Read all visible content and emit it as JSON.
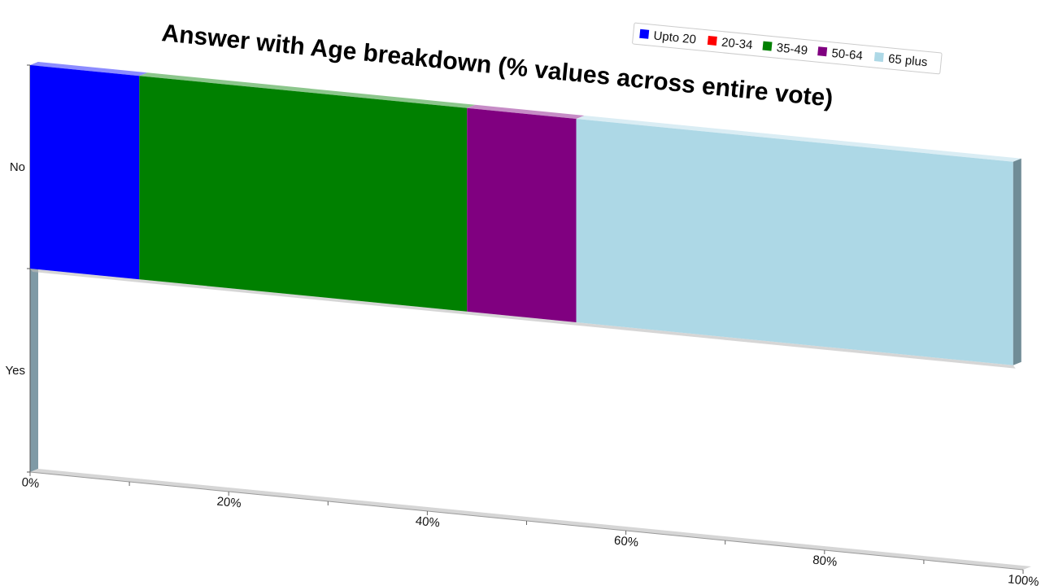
{
  "chart_data": {
    "type": "bar",
    "orientation": "horizontal",
    "stacked": true,
    "title": "Answer with Age breakdown (% values across entire vote)",
    "categories": [
      "No",
      "Yes"
    ],
    "series": [
      {
        "name": "Upto 20",
        "color": "#0000ff",
        "values": [
          11,
          0
        ]
      },
      {
        "name": "20-34",
        "color": "#ff0000",
        "values": [
          0,
          0
        ]
      },
      {
        "name": "35-49",
        "color": "#008000",
        "values": [
          33,
          0
        ]
      },
      {
        "name": "50-64",
        "color": "#800080",
        "values": [
          11,
          0
        ]
      },
      {
        "name": "65 plus",
        "color": "#add8e6",
        "values": [
          44,
          0
        ]
      }
    ],
    "x_ticks": [
      "0%",
      "20%",
      "40%",
      "60%",
      "80%",
      "100%"
    ],
    "xlim": [
      0,
      100
    ],
    "legend_position": "top-right",
    "grid": false
  }
}
